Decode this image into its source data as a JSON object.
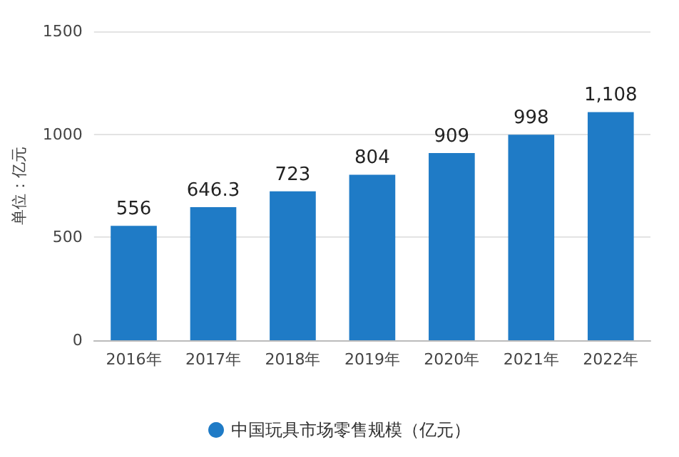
{
  "chart_data": {
    "type": "bar",
    "ylabel": "单位：亿元",
    "categories": [
      "2016年",
      "2017年",
      "2018年",
      "2019年",
      "2020年",
      "2021年",
      "2022年"
    ],
    "series": [
      {
        "name": "中国玩具市场零售规模（亿元）",
        "color": "#1f7bc6",
        "values": [
          556,
          646.3,
          723,
          804,
          909,
          998,
          1108
        ],
        "value_labels": [
          "556",
          "646.3",
          "723",
          "804",
          "909",
          "998",
          "1,108"
        ]
      }
    ],
    "ylim": [
      0,
      1500
    ],
    "yticks": [
      0,
      500,
      1000,
      1500
    ],
    "grid": "y",
    "legend": "bottom",
    "marker": "circle"
  }
}
